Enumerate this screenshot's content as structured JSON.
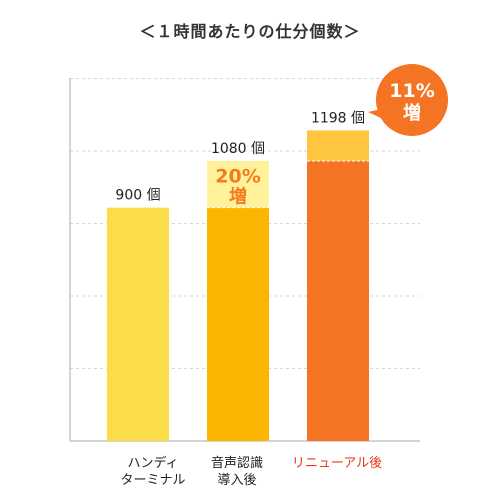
{
  "chart_data": {
    "type": "bar",
    "title": "＜１時間あたりの仕分個数＞",
    "categories": [
      {
        "lines": [
          "ハンディ",
          "ターミナル"
        ],
        "color": "#222222"
      },
      {
        "lines": [
          "音声認識",
          "導入後"
        ],
        "color": "#222222"
      },
      {
        "lines": [
          "リニューアル後"
        ],
        "color": "#e53b1a"
      }
    ],
    "values": [
      900,
      1080,
      1198
    ],
    "base_values": [
      900,
      900,
      1080
    ],
    "value_labels": [
      "900 個",
      "1080 個",
      "1198 個"
    ],
    "increase_labels": [
      null,
      [
        "20%",
        "増"
      ],
      [
        "11%",
        "増"
      ]
    ],
    "ylim": [
      0,
      1400
    ],
    "grid": true,
    "colors": {
      "bar_1": "#fddc4a",
      "bar_2_base": "#fbb700",
      "bar_2_increase": "#fff29a",
      "bar_3_base": "#f47423",
      "bar_3_increase": "#ffc640",
      "increase_text": "#f47a1e",
      "badge": "#f47423",
      "axis": "#aaaaaa",
      "grid": "#d6d6d6"
    }
  }
}
